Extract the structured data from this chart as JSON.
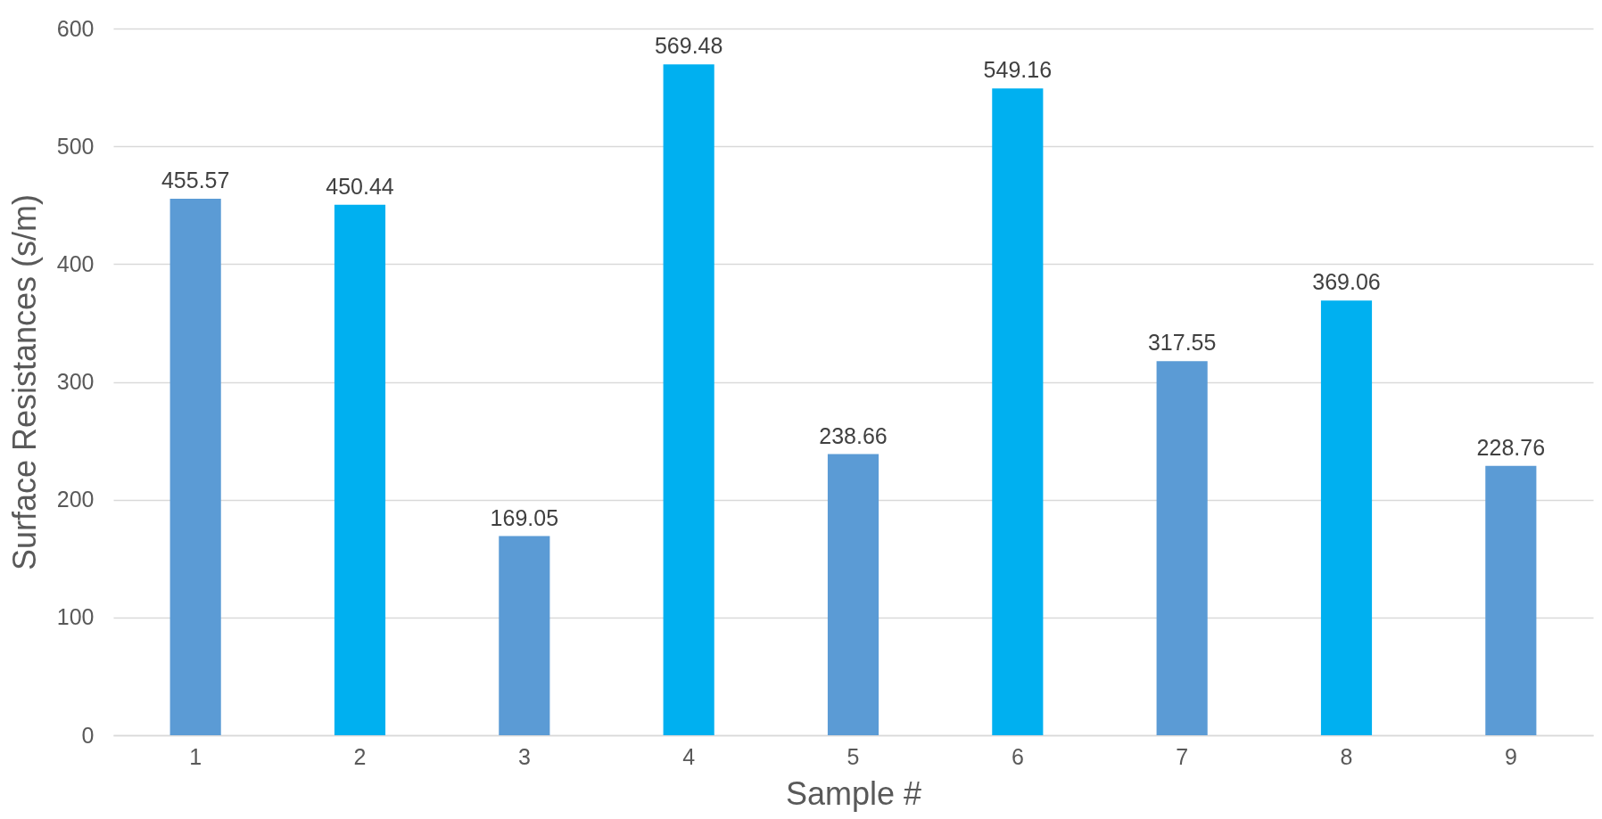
{
  "chart_data": {
    "type": "bar",
    "xlabel": "Sample #",
    "ylabel": "Surface Resistances (s/m)",
    "categories": [
      "1",
      "2",
      "3",
      "4",
      "5",
      "6",
      "7",
      "8",
      "9"
    ],
    "values": [
      455.57,
      450.44,
      169.05,
      569.48,
      238.66,
      549.16,
      317.55,
      369.06,
      228.76
    ],
    "colors": [
      "#5b9bd5",
      "#00b0f0",
      "#5b9bd5",
      "#00b0f0",
      "#5b9bd5",
      "#00b0f0",
      "#5b9bd5",
      "#00b0f0",
      "#5b9bd5"
    ],
    "ylim": [
      0,
      600
    ],
    "yticks": [
      0,
      100,
      200,
      300,
      400,
      500,
      600
    ],
    "grid": "y",
    "data_labels": true
  }
}
